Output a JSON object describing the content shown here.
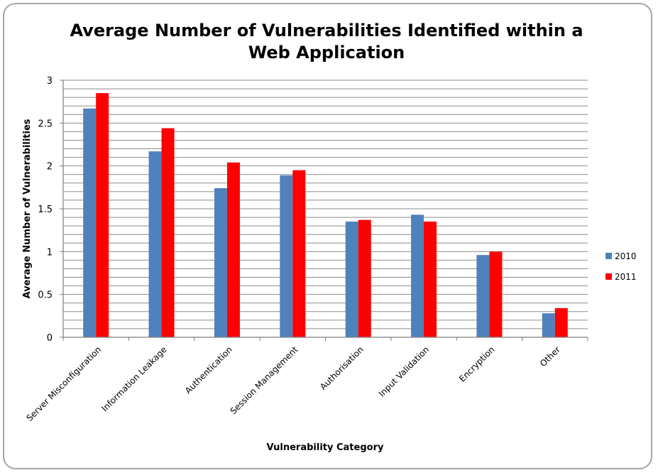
{
  "chart_data": {
    "type": "bar",
    "title_line1": "Average Number of Vulnerabilities Identified within a",
    "title_line2": "Web Application",
    "xlabel": "Vulnerability Category",
    "ylabel": "Average Number of Vulnerabilities",
    "ylim": [
      0,
      3
    ],
    "yticks": [
      "0",
      "0.5",
      "1",
      "1.5",
      "2",
      "2.5",
      "3"
    ],
    "ytick_values": [
      0,
      0.5,
      1,
      1.5,
      2,
      2.5,
      3
    ],
    "minor_grid_step": 0.1,
    "legend_position": "right",
    "categories": [
      "Server Misconfiguration",
      "Information Leakage",
      "Authentication",
      "Session Management",
      "Authorisation",
      "Input Validation",
      "Encryption",
      "Other"
    ],
    "series": [
      {
        "name": "2010",
        "color": "#4f81bd",
        "values": [
          2.67,
          2.17,
          1.74,
          1.89,
          1.35,
          1.43,
          0.96,
          0.28
        ]
      },
      {
        "name": "2011",
        "color": "#ff0000",
        "values": [
          2.85,
          2.44,
          2.04,
          1.95,
          1.37,
          1.35,
          1.0,
          0.34
        ]
      }
    ]
  }
}
